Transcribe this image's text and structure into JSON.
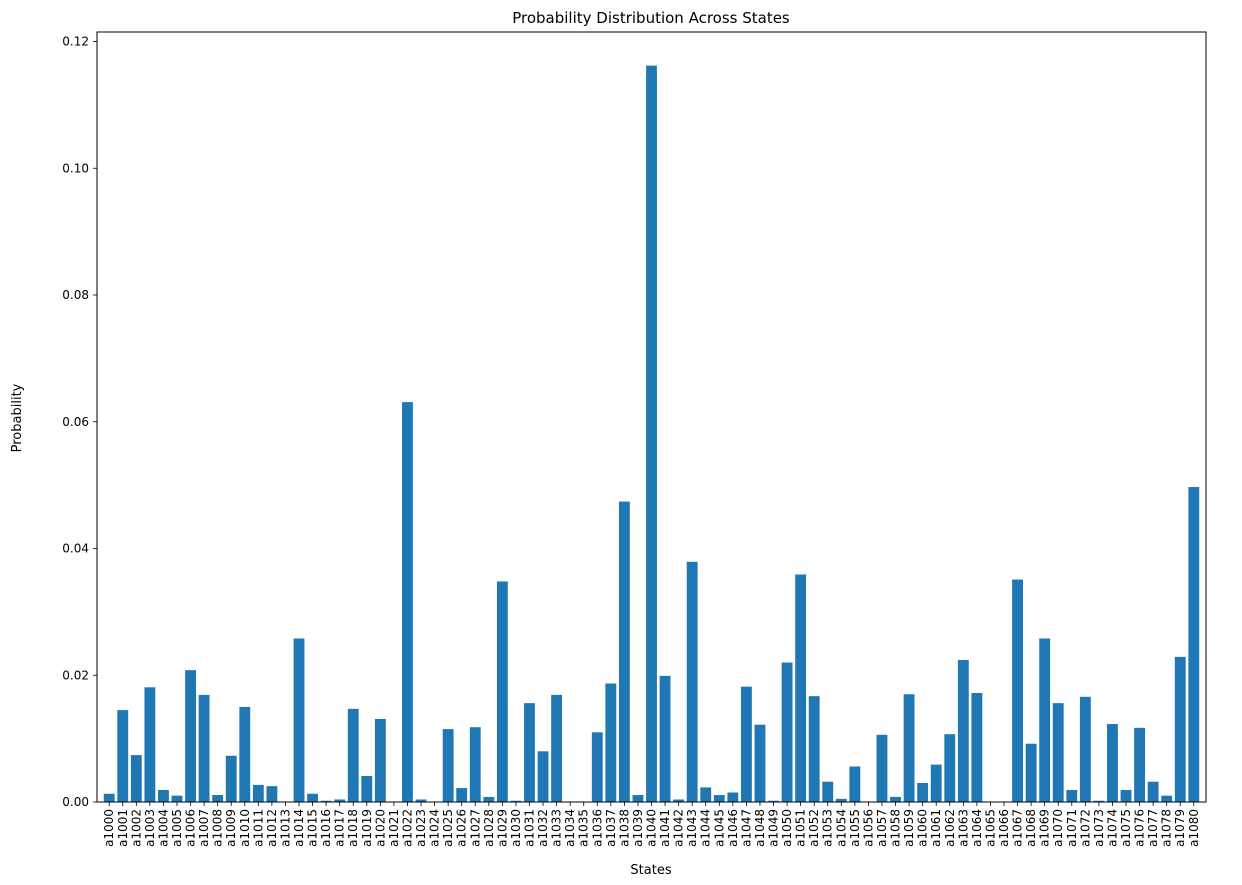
{
  "chart_data": {
    "type": "bar",
    "title": "Probability Distribution Across States",
    "xlabel": "States",
    "ylabel": "Probability",
    "ylim": [
      0,
      0.1215
    ],
    "yticks": [
      0.0,
      0.02,
      0.04,
      0.06,
      0.08,
      0.1,
      0.12
    ],
    "ytick_labels": [
      "0.00",
      "0.02",
      "0.04",
      "0.06",
      "0.08",
      "0.10",
      "0.12"
    ],
    "bar_color": "#1f77b4",
    "grid": false,
    "categories": [
      "a1000",
      "a1001",
      "a1002",
      "a1003",
      "a1004",
      "a1005",
      "a1006",
      "a1007",
      "a1008",
      "a1009",
      "a1010",
      "a1011",
      "a1012",
      "a1013",
      "a1014",
      "a1015",
      "a1016",
      "a1017",
      "a1018",
      "a1019",
      "a1020",
      "a1021",
      "a1022",
      "a1023",
      "a1024",
      "a1025",
      "a1026",
      "a1027",
      "a1028",
      "a1029",
      "a1030",
      "a1031",
      "a1032",
      "a1033",
      "a1034",
      "a1035",
      "a1036",
      "a1037",
      "a1038",
      "a1039",
      "a1040",
      "a1041",
      "a1042",
      "a1043",
      "a1044",
      "a1045",
      "a1046",
      "a1047",
      "a1048",
      "a1049",
      "a1050",
      "a1051",
      "a1052",
      "a1053",
      "a1054",
      "a1055",
      "a1056",
      "a1057",
      "a1058",
      "a1059",
      "a1060",
      "a1061",
      "a1062",
      "a1063",
      "a1064",
      "a1065",
      "a1066",
      "a1067",
      "a1068",
      "a1069",
      "a1070",
      "a1071",
      "a1072",
      "a1073",
      "a1074",
      "a1075",
      "a1076",
      "a1077",
      "a1078",
      "a1079",
      "a1080"
    ],
    "values": [
      0.0013,
      0.0145,
      0.0074,
      0.0181,
      0.0019,
      0.001,
      0.0208,
      0.0169,
      0.0011,
      0.0073,
      0.015,
      0.0027,
      0.0025,
      0.0,
      0.0258,
      0.0013,
      0.0002,
      0.0004,
      0.0147,
      0.0041,
      0.0131,
      0.0,
      0.0631,
      0.0004,
      0.0,
      0.0115,
      0.0022,
      0.0118,
      0.0008,
      0.0348,
      0.0002,
      0.0156,
      0.008,
      0.0169,
      0.0,
      0.0,
      0.011,
      0.0187,
      0.0474,
      0.0011,
      0.1162,
      0.0199,
      0.0004,
      0.0379,
      0.0023,
      0.0011,
      0.0015,
      0.0182,
      0.0122,
      0.0002,
      0.022,
      0.0359,
      0.0167,
      0.0032,
      0.0005,
      0.0056,
      0.0,
      0.0106,
      0.0008,
      0.017,
      0.003,
      0.0059,
      0.0107,
      0.0224,
      0.0172,
      0.0,
      0.0,
      0.0351,
      0.0092,
      0.0258,
      0.0156,
      0.0019,
      0.0166,
      0.0002,
      0.0123,
      0.0019,
      0.0117,
      0.0032,
      0.001,
      0.0229,
      0.0497
    ]
  }
}
